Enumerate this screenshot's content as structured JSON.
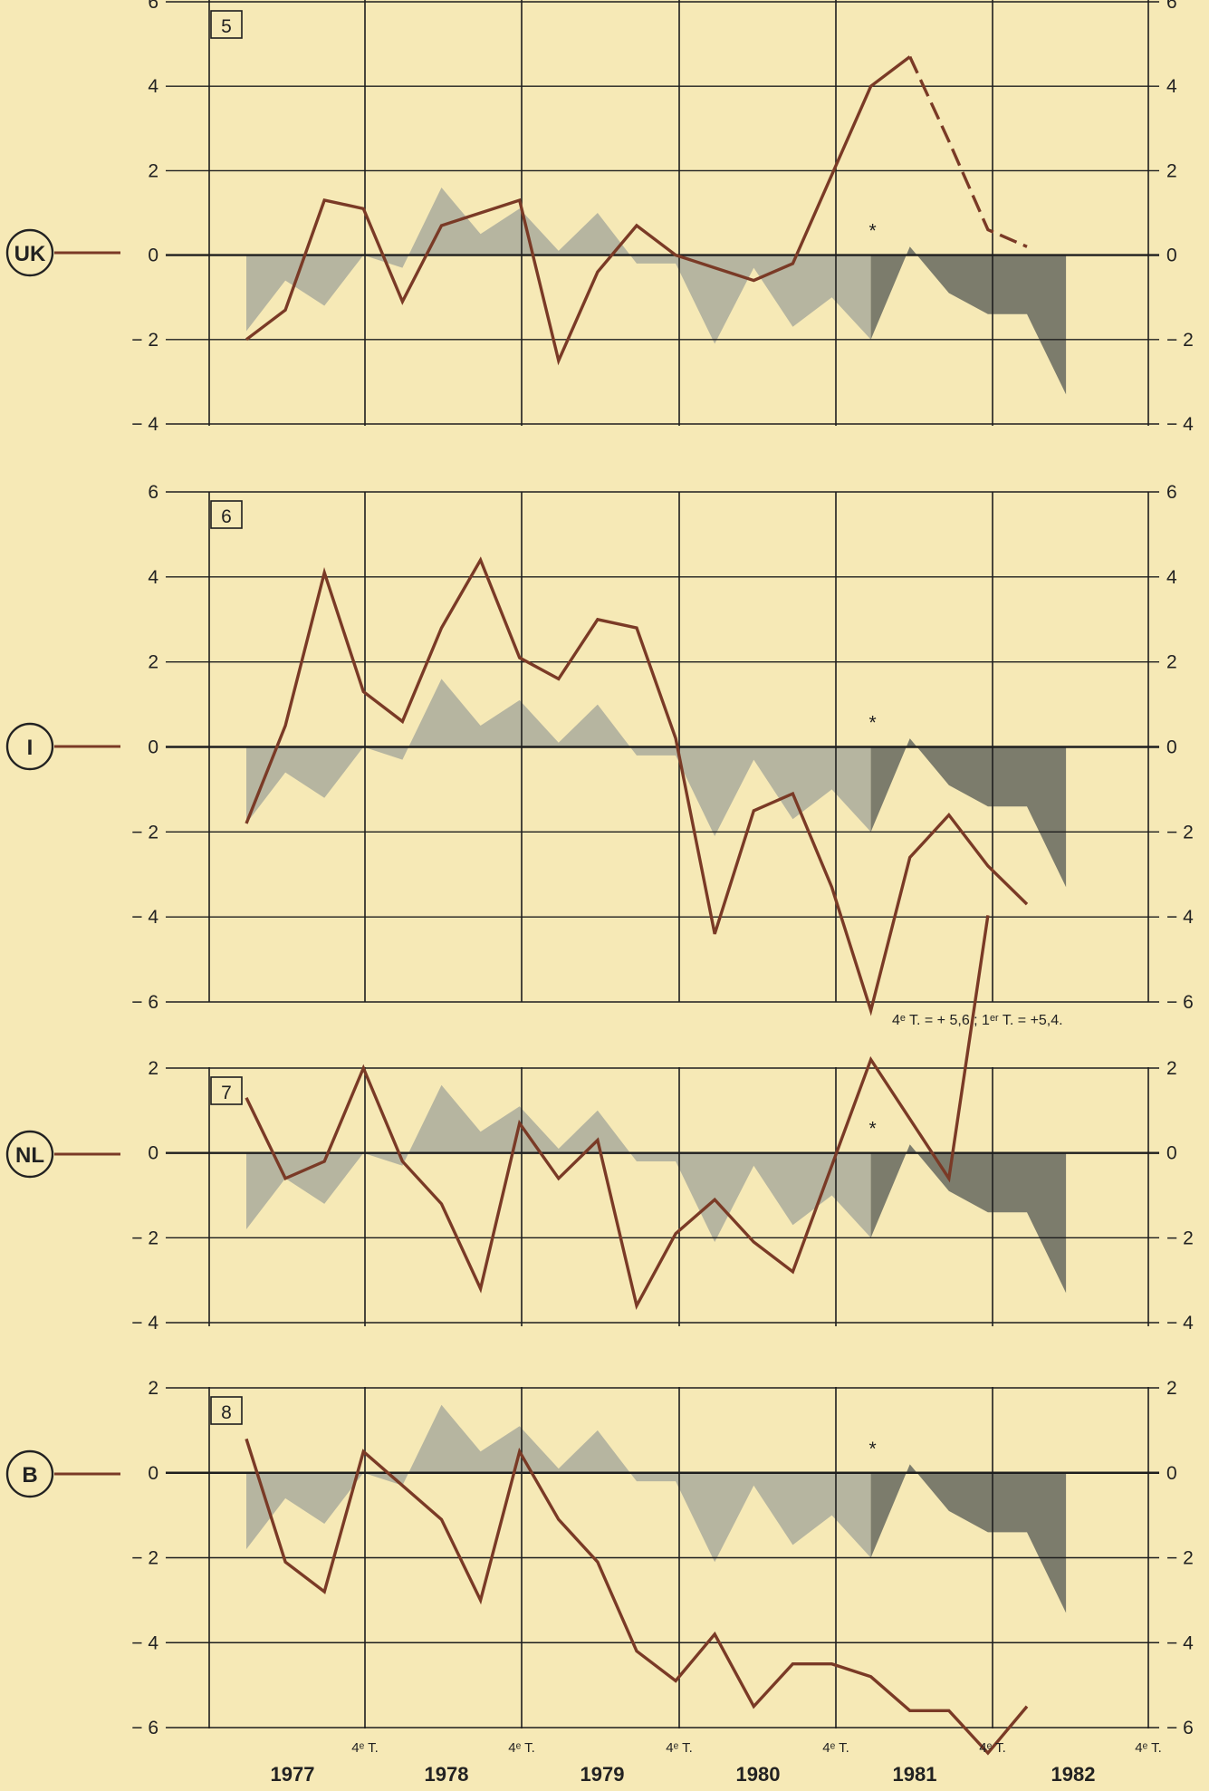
{
  "chart_data": [
    {
      "type": "line",
      "panel": "5",
      "country": "UK",
      "ylim": [
        -4,
        6
      ],
      "yticks": [
        "6",
        "4",
        "2",
        "0",
        "− 2",
        "− 4"
      ],
      "x": [
        0,
        1,
        2,
        3,
        4,
        5,
        6,
        7,
        8,
        9,
        10,
        11,
        12,
        13,
        14,
        15,
        16,
        17,
        18,
        19,
        20
      ],
      "series": [
        {
          "values": [
            -2.0,
            -1.3,
            1.3,
            1.1,
            -1.1,
            0.7,
            1.0,
            1.3,
            -2.5,
            -0.4,
            0.7,
            0.0,
            -0.3,
            -0.6,
            -0.2,
            1.9,
            4.0,
            4.7,
            null,
            null,
            null
          ]
        },
        {
          "style": "dashed",
          "values": [
            null,
            null,
            null,
            null,
            null,
            null,
            null,
            null,
            null,
            null,
            null,
            null,
            null,
            null,
            null,
            null,
            null,
            4.7,
            2.7,
            0.6,
            0.2
          ]
        }
      ]
    },
    {
      "type": "line",
      "panel": "6",
      "country": "I",
      "ylim": [
        -6,
        6
      ],
      "yticks": [
        "6",
        "4",
        "2",
        "0",
        "− 2",
        "− 4",
        "− 6"
      ],
      "x": [
        0,
        1,
        2,
        3,
        4,
        5,
        6,
        7,
        8,
        9,
        10,
        11,
        12,
        13,
        14,
        15,
        16,
        17,
        18,
        19,
        20
      ],
      "series": [
        {
          "values": [
            -1.8,
            0.5,
            4.1,
            1.3,
            0.6,
            2.8,
            4.4,
            2.1,
            1.6,
            3.0,
            2.8,
            0.2,
            -4.4,
            -1.5,
            -1.1,
            -3.3,
            -6.2,
            -2.6,
            -1.6,
            -2.8,
            -3.7
          ]
        }
      ],
      "annotation": "4e T. = + 5,6 ; 1er T. = +5,4."
    },
    {
      "type": "line",
      "panel": "7",
      "country": "NL",
      "ylim": [
        -4,
        2
      ],
      "yticks": [
        "2",
        "0",
        "− 2",
        "− 4"
      ],
      "x": [
        0,
        1,
        2,
        3,
        4,
        5,
        6,
        7,
        8,
        9,
        10,
        11,
        12,
        13,
        14,
        15,
        16,
        17,
        18,
        19
      ],
      "series": [
        {
          "values": [
            1.3,
            -0.6,
            -0.2,
            2.0,
            -0.2,
            -1.2,
            -3.2,
            0.7,
            -0.6,
            0.3,
            -3.6,
            -1.9,
            -1.1,
            -2.1,
            -2.8,
            -0.3,
            2.2,
            0.8,
            -0.6,
            5.6
          ]
        }
      ]
    },
    {
      "type": "line",
      "panel": "8",
      "country": "B",
      "ylim": [
        -6,
        2
      ],
      "yticks": [
        "2",
        "0",
        "− 2",
        "− 4",
        "− 6"
      ],
      "x": [
        0,
        1,
        2,
        3,
        4,
        5,
        6,
        7,
        8,
        9,
        10,
        11,
        12,
        13,
        14,
        15,
        16,
        17,
        18,
        19,
        20
      ],
      "series": [
        {
          "values": [
            0.8,
            -2.1,
            -2.8,
            0.5,
            -0.3,
            -1.1,
            -3.0,
            0.5,
            -1.1,
            -2.1,
            -4.2,
            -4.9,
            -3.8,
            -5.5,
            -4.5,
            -4.5,
            -4.8,
            -5.6,
            -5.6,
            -6.6,
            -5.5
          ]
        }
      ]
    }
  ],
  "shaded_area_common": {
    "note": "grey area series identical in all four panels; darker after the asterisk",
    "values": [
      -1.8,
      -0.6,
      -1.2,
      0.0,
      -0.3,
      1.6,
      0.5,
      1.1,
      0.1,
      1.0,
      -0.2,
      -0.2,
      -2.1,
      -0.3,
      -1.7,
      -1.0,
      -2.0,
      0.2,
      -0.9,
      -1.4,
      -1.4,
      -3.3
    ],
    "dark_from_index": 16,
    "asterisk": "*"
  },
  "x_axis": {
    "years": [
      "1977",
      "1978",
      "1979",
      "1980",
      "1981",
      "1982"
    ],
    "quarter_label": "4e T."
  },
  "colors": {
    "line": "#7a3a26",
    "area_light": "#b6b5a0",
    "area_dark": "#7c7c6c",
    "grid": "#1e1e1e",
    "background": "#f6e9b6"
  }
}
